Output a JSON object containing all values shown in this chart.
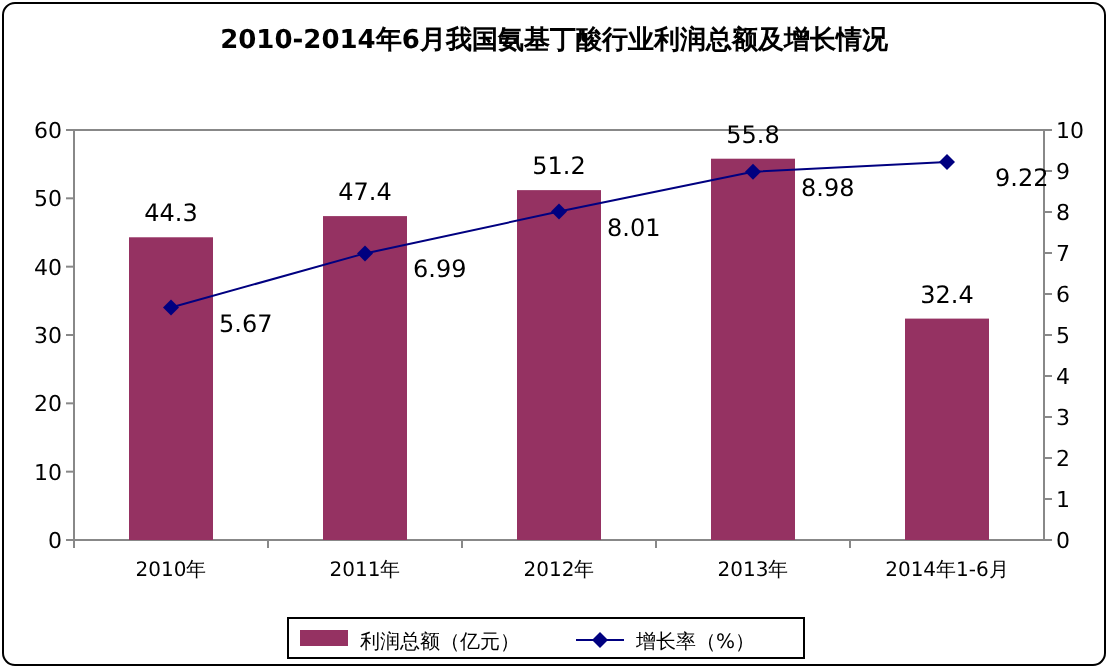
{
  "chart_data": {
    "type": "bar",
    "title": "2010-2014年6月我国氨基丁酸行业利润总额及增长情况",
    "categories": [
      "2010年",
      "2011年",
      "2012年",
      "2013年",
      "2014年1-6月"
    ],
    "series": [
      {
        "name": "利润总额（亿元）",
        "color": "#953262",
        "values": [
          44.3,
          47.4,
          51.2,
          55.8,
          32.4
        ]
      },
      {
        "name": "增长率（%）",
        "type": "line",
        "axis": "y2",
        "color": "#000080",
        "marker": "diamond",
        "values": [
          5.67,
          6.99,
          8.01,
          8.98,
          9.22
        ]
      }
    ],
    "ylim": [
      0,
      60
    ],
    "yticks": [
      0,
      10,
      20,
      30,
      40,
      50,
      60
    ],
    "y2lim": [
      0,
      10
    ],
    "y2ticks": [
      0,
      1,
      2,
      3,
      4,
      5,
      6,
      7,
      8,
      9,
      10
    ],
    "legend": "bottom",
    "data_labels": true
  }
}
